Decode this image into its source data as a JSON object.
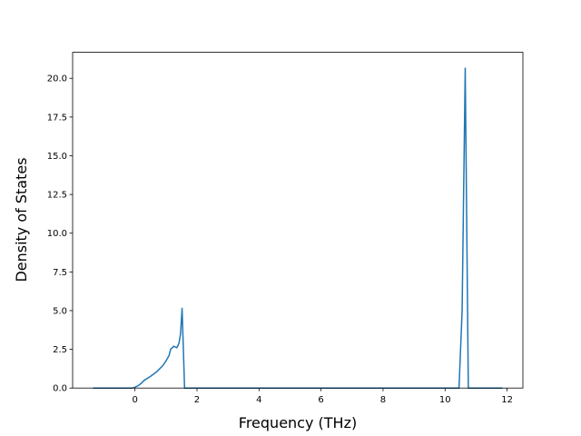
{
  "chart_data": {
    "type": "line",
    "x_label": "Frequency (THz)",
    "y_label": "Density of States",
    "series": [
      {
        "color": "#1f77b4",
        "x": [
          -1.35,
          -0.1,
          0,
          0.1,
          0.2,
          0.3,
          0.5,
          0.7,
          0.9,
          1.0,
          1.1,
          1.15,
          1.25,
          1.35,
          1.42,
          1.47,
          1.52,
          1.6,
          10.45,
          10.55,
          10.65,
          10.75,
          11.85
        ],
        "values": [
          0,
          0,
          0.05,
          0.15,
          0.3,
          0.5,
          0.75,
          1.05,
          1.45,
          1.75,
          2.1,
          2.5,
          2.7,
          2.6,
          2.9,
          3.5,
          5.15,
          0,
          0,
          5,
          20.65,
          0,
          0
        ]
      }
    ],
    "xlim": [
      -2.01,
      12.51
    ],
    "xticks": [
      0,
      2,
      4,
      6,
      8,
      10,
      12
    ],
    "ylim": [
      0,
      21.68
    ],
    "yticks": [
      {
        "value": 0,
        "label": "0.0"
      },
      2.5,
      {
        "value": 5,
        "label": "5.0"
      },
      7.5,
      {
        "value": 10,
        "label": "10.0"
      },
      12.5,
      {
        "value": 15,
        "label": "15.0"
      },
      17.5,
      {
        "value": 20,
        "label": "20.0"
      }
    ],
    "grid": false
  }
}
